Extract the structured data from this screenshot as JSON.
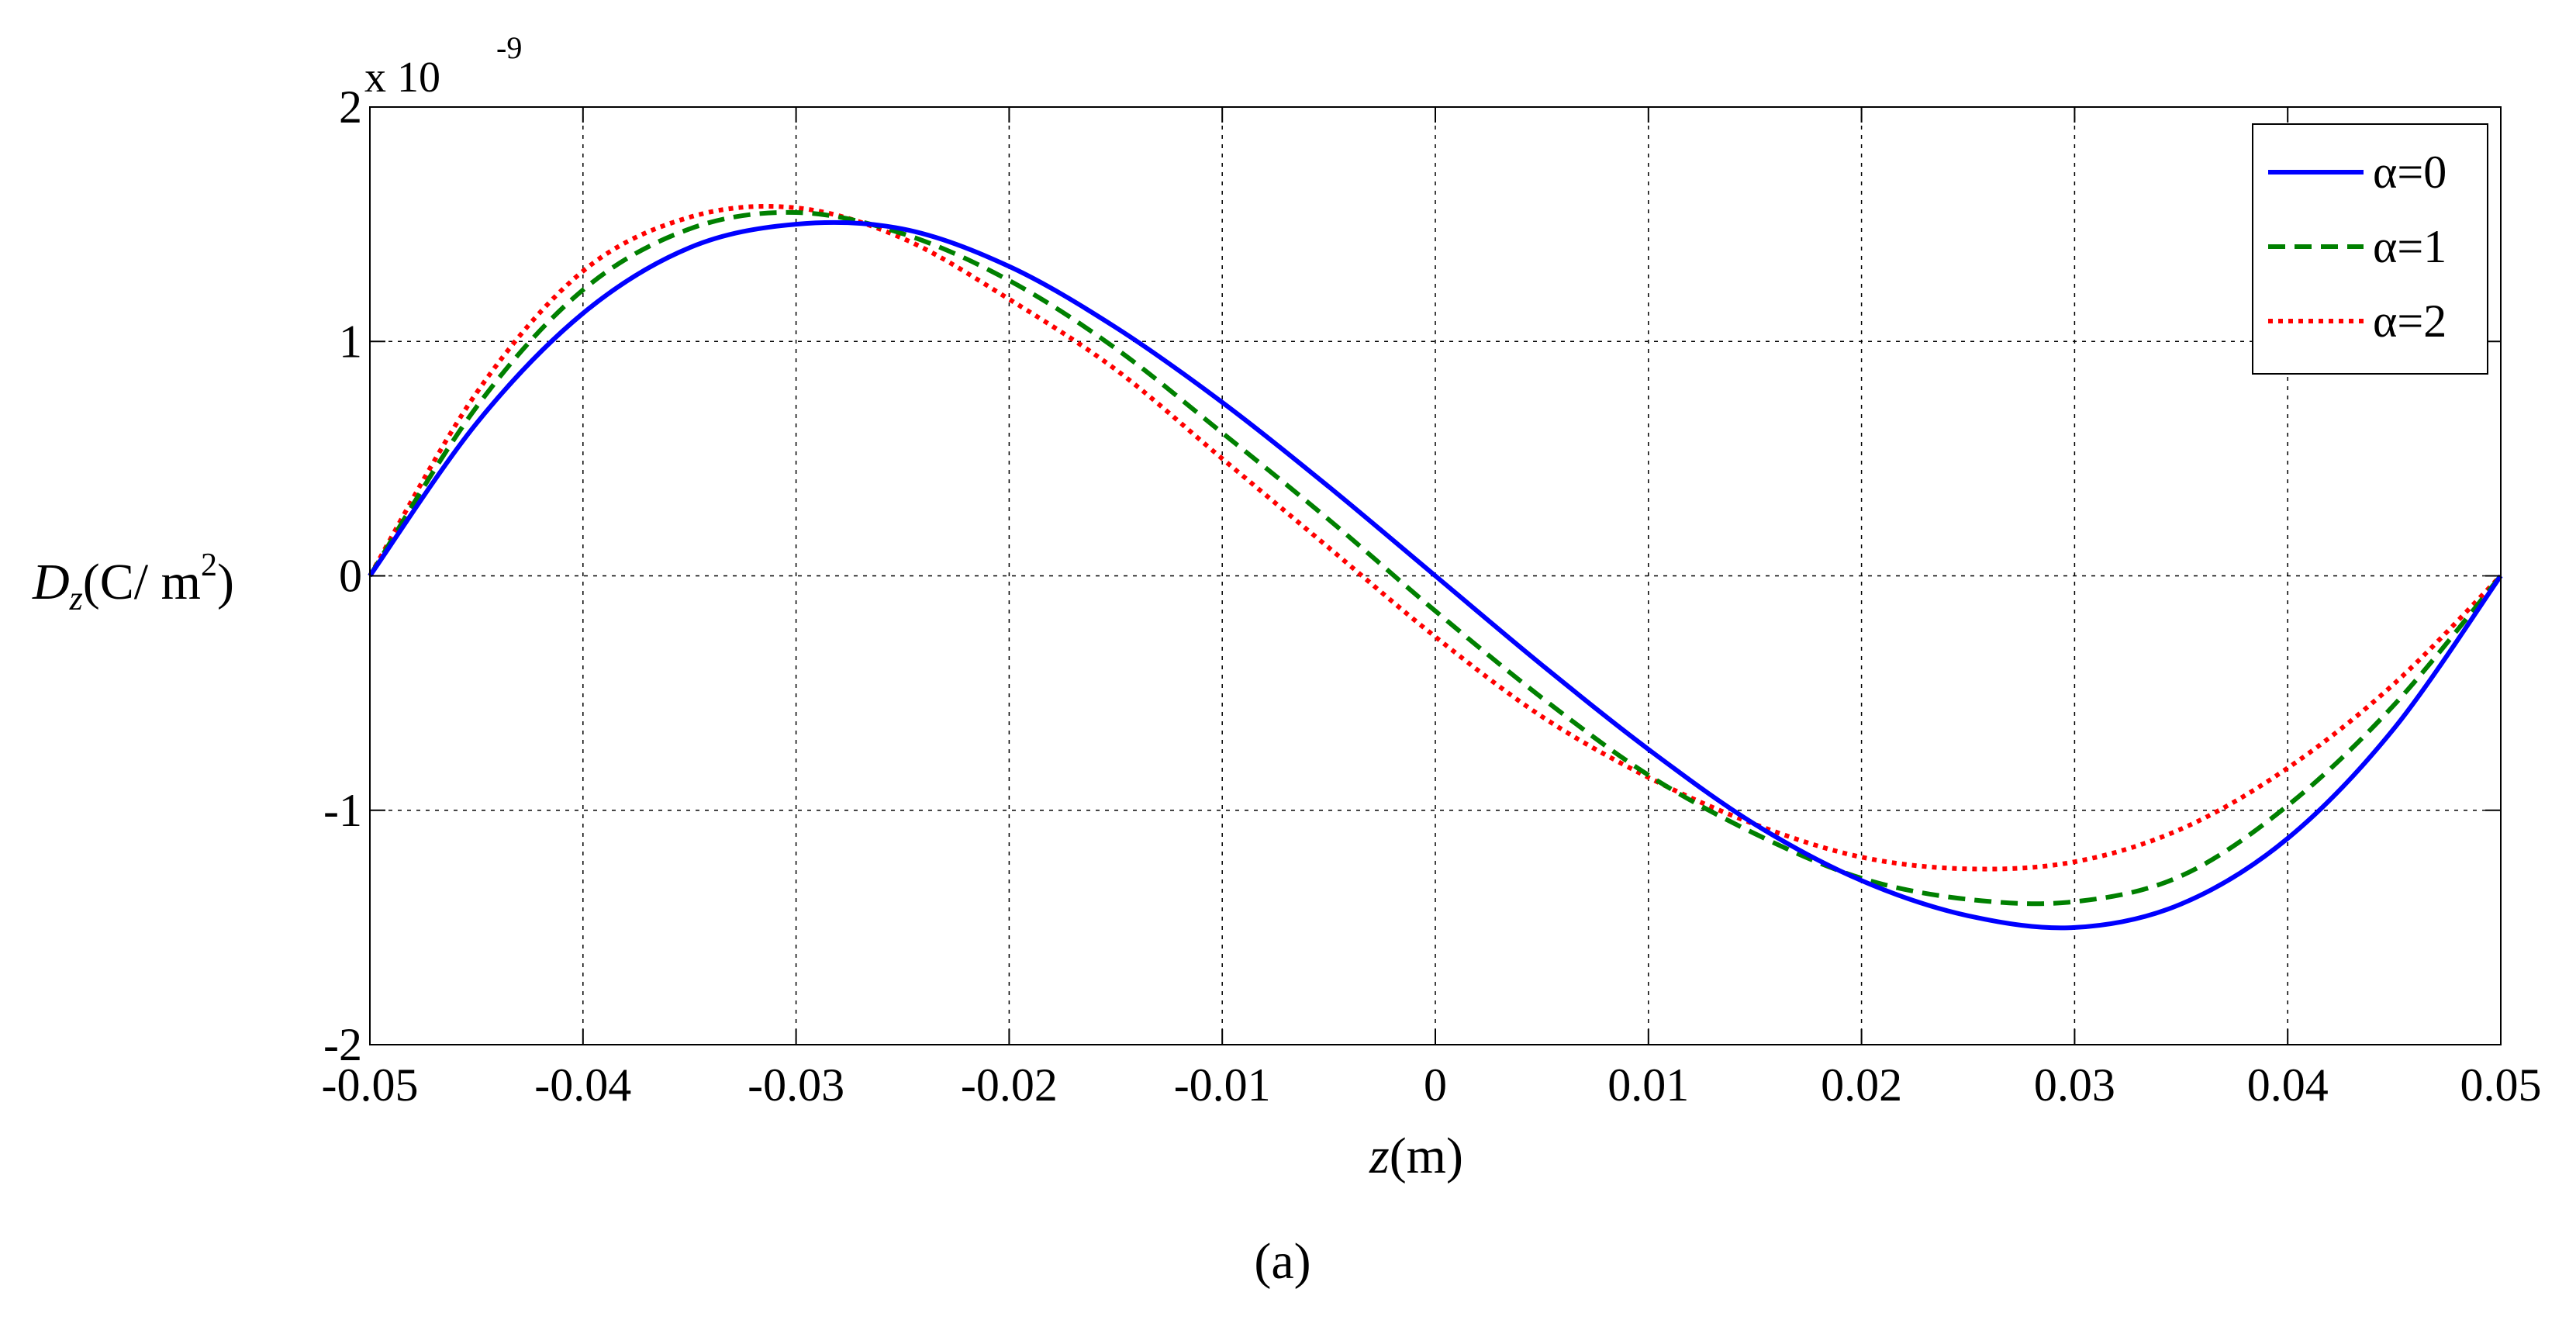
{
  "chart_data": {
    "type": "line",
    "title": "",
    "xlabel": "z(m)",
    "ylabel": "D_z(C/ m^2)",
    "ylabel_parts": {
      "main": "D",
      "sub": "z",
      "open": "(C/ m",
      "sup": "2",
      "close": ")"
    },
    "xlabel_parts": {
      "italic": "z",
      "rest": "(m)"
    },
    "xlim": [
      -0.05,
      0.05
    ],
    "ylim": [
      -2,
      2
    ],
    "x_ticks": [
      -0.05,
      -0.04,
      -0.03,
      -0.02,
      -0.01,
      0,
      0.01,
      0.02,
      0.03,
      0.04,
      0.05
    ],
    "x_tick_labels": [
      "-0.05",
      "-0.04",
      "-0.03",
      "-0.02",
      "-0.01",
      "0",
      "0.01",
      "0.02",
      "0.03",
      "0.04",
      "0.05"
    ],
    "y_ticks": [
      -2,
      -1,
      0,
      1,
      2
    ],
    "y_tick_labels": [
      "-2",
      "-1",
      "0",
      "1",
      "2"
    ],
    "y_exponent": {
      "base": "x 10",
      "power": "-9"
    },
    "grid": true,
    "legend_position": "top-right",
    "caption": "(a)",
    "x": [
      -0.05,
      -0.045,
      -0.04,
      -0.035,
      -0.03,
      -0.025,
      -0.02,
      -0.015,
      -0.01,
      -0.005,
      0,
      0.005,
      0.01,
      0.015,
      0.02,
      0.025,
      0.03,
      0.035,
      0.04,
      0.045,
      0.05
    ],
    "series": [
      {
        "name": "α=0",
        "color": "#0000ff",
        "dash": "solid",
        "values": [
          0,
          0.65,
          1.12,
          1.4,
          1.5,
          1.48,
          1.32,
          1.06,
          0.74,
          0.38,
          0,
          -0.38,
          -0.74,
          -1.06,
          -1.3,
          -1.45,
          -1.5,
          -1.4,
          -1.12,
          -0.65,
          0
        ]
      },
      {
        "name": "α=1",
        "color": "#008000",
        "dash": "dashed",
        "values": [
          0,
          0.72,
          1.22,
          1.48,
          1.55,
          1.46,
          1.26,
          0.97,
          0.61,
          0.24,
          -0.15,
          -0.52,
          -0.85,
          -1.1,
          -1.29,
          -1.38,
          -1.39,
          -1.28,
          -0.98,
          -0.55,
          0
        ]
      },
      {
        "name": "α=2",
        "color": "#ff0000",
        "dash": "dotted",
        "values": [
          0,
          0.78,
          1.3,
          1.53,
          1.57,
          1.44,
          1.18,
          0.88,
          0.5,
          0.12,
          -0.26,
          -0.6,
          -0.86,
          -1.06,
          -1.2,
          -1.25,
          -1.22,
          -1.08,
          -0.82,
          -0.46,
          0
        ]
      }
    ]
  }
}
